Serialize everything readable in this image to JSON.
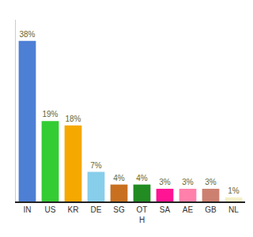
{
  "chart_data": {
    "type": "bar",
    "categories": [
      "IN",
      "US",
      "KR",
      "DE",
      "SG",
      "OT\nH",
      "SA",
      "AE",
      "GB",
      "NL"
    ],
    "values": [
      38,
      19,
      18,
      7,
      4,
      4,
      3,
      3,
      3,
      1
    ],
    "value_labels": [
      "38%",
      "19%",
      "18%",
      "7%",
      "4%",
      "4%",
      "3%",
      "3%",
      "3%",
      "1%"
    ],
    "colors": [
      "#4d7fd4",
      "#33cc33",
      "#f5a800",
      "#87ceeb",
      "#c87020",
      "#228b22",
      "#ff1493",
      "#ff80aa",
      "#cc8070",
      "#f5f0c8"
    ],
    "ylim": [
      0,
      43
    ],
    "yticks": [],
    "data_labels": true,
    "tick_labels": "x",
    "grid": false
  }
}
